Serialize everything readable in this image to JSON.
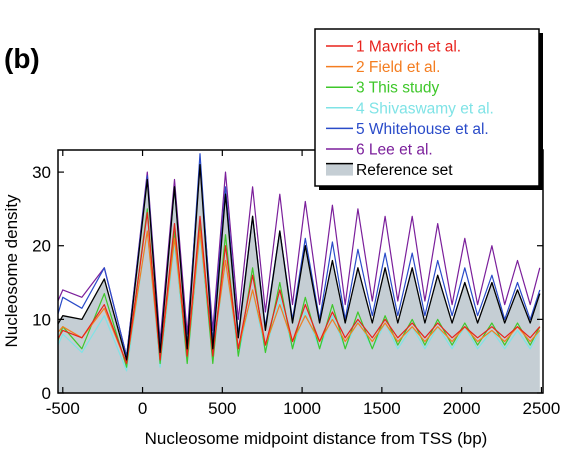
{
  "panel_label": "(b)",
  "chart_data": {
    "type": "line",
    "title": "",
    "xlabel": "Nucleosome midpoint distance from TSS (bp)",
    "ylabel": "Nucleosome density",
    "xlim": [
      -530,
      2510
    ],
    "ylim": [
      0,
      33
    ],
    "xticks": [
      -500,
      0,
      500,
      1000,
      1500,
      2000,
      2500
    ],
    "xtick_labels": [
      "-500",
      "0",
      "500",
      "1000",
      "1500",
      "2000",
      "2500"
    ],
    "yticks": [
      0,
      10,
      20,
      30
    ],
    "ytick_labels": [
      "0",
      "10",
      "20",
      "30"
    ],
    "grid": false,
    "legend_position": "top-right",
    "series": [
      {
        "name": "1 Mavrich et al.",
        "color": "#e8221c",
        "peaks": [
          [
            -500,
            8.5
          ],
          [
            -240,
            12
          ],
          [
            30,
            24.5
          ],
          [
            200,
            23
          ],
          [
            360,
            24
          ],
          [
            520,
            20
          ],
          [
            690,
            16
          ],
          [
            860,
            14
          ],
          [
            1020,
            12
          ],
          [
            1190,
            11
          ],
          [
            1350,
            10
          ],
          [
            1520,
            10
          ],
          [
            1690,
            9.5
          ],
          [
            1850,
            9.5
          ],
          [
            2020,
            9
          ],
          [
            2190,
            9
          ],
          [
            2350,
            9
          ],
          [
            2490,
            9
          ]
        ],
        "troughs": [
          [
            -540,
            7
          ],
          [
            -380,
            7.5
          ],
          [
            -100,
            4
          ],
          [
            110,
            4.5
          ],
          [
            280,
            5
          ],
          [
            440,
            5
          ],
          [
            600,
            6
          ],
          [
            770,
            6.5
          ],
          [
            940,
            7
          ],
          [
            1110,
            7
          ],
          [
            1270,
            7.5
          ],
          [
            1440,
            7.5
          ],
          [
            1600,
            7.5
          ],
          [
            1770,
            7.5
          ],
          [
            1940,
            7.5
          ],
          [
            2100,
            7.5
          ],
          [
            2270,
            7.5
          ],
          [
            2430,
            7.5
          ]
        ]
      },
      {
        "name": "2 Field et al.",
        "color": "#f47d20",
        "peaks": [
          [
            -500,
            9
          ],
          [
            -240,
            11.5
          ],
          [
            30,
            22
          ],
          [
            200,
            21
          ],
          [
            360,
            22
          ],
          [
            520,
            18
          ],
          [
            690,
            14
          ],
          [
            860,
            12
          ],
          [
            1020,
            10.5
          ],
          [
            1190,
            10
          ],
          [
            1350,
            9.5
          ],
          [
            1520,
            9.5
          ],
          [
            1690,
            9
          ],
          [
            1850,
            9
          ],
          [
            2020,
            9
          ],
          [
            2190,
            8.5
          ],
          [
            2350,
            9
          ],
          [
            2490,
            8.5
          ]
        ],
        "troughs": [
          [
            -540,
            8
          ],
          [
            -380,
            7.5
          ],
          [
            -100,
            4
          ],
          [
            110,
            4.5
          ],
          [
            280,
            5
          ],
          [
            440,
            5.5
          ],
          [
            600,
            6
          ],
          [
            770,
            6.5
          ],
          [
            940,
            7
          ],
          [
            1110,
            7
          ],
          [
            1270,
            7
          ],
          [
            1440,
            7
          ],
          [
            1600,
            7
          ],
          [
            1770,
            7
          ],
          [
            1940,
            7
          ],
          [
            2100,
            7
          ],
          [
            2270,
            7
          ],
          [
            2430,
            7
          ]
        ]
      },
      {
        "name": "3 This study",
        "color": "#3ec72a",
        "peaks": [
          [
            -500,
            9
          ],
          [
            -240,
            13.5
          ],
          [
            30,
            25
          ],
          [
            200,
            22
          ],
          [
            360,
            23
          ],
          [
            520,
            21.5
          ],
          [
            690,
            17
          ],
          [
            860,
            15
          ],
          [
            1020,
            13
          ],
          [
            1190,
            12
          ],
          [
            1350,
            11
          ],
          [
            1520,
            10.5
          ],
          [
            1690,
            10
          ],
          [
            1850,
            10
          ],
          [
            2020,
            9.5
          ],
          [
            2190,
            9.5
          ],
          [
            2350,
            9.5
          ],
          [
            2490,
            9
          ]
        ],
        "troughs": [
          [
            -540,
            6.5
          ],
          [
            -380,
            6
          ],
          [
            -100,
            3.5
          ],
          [
            110,
            4
          ],
          [
            280,
            4
          ],
          [
            440,
            4
          ],
          [
            600,
            5
          ],
          [
            770,
            5.5
          ],
          [
            940,
            6
          ],
          [
            1110,
            6
          ],
          [
            1270,
            6
          ],
          [
            1440,
            6
          ],
          [
            1600,
            6.5
          ],
          [
            1770,
            6.5
          ],
          [
            1940,
            6.5
          ],
          [
            2100,
            6.5
          ],
          [
            2270,
            6.5
          ],
          [
            2430,
            6.5
          ]
        ]
      },
      {
        "name": "4 Shivaswamy et al.",
        "color": "#7fe3e6",
        "peaks": [
          [
            -500,
            8
          ],
          [
            -240,
            10.5
          ],
          [
            30,
            22
          ],
          [
            200,
            20
          ],
          [
            360,
            21
          ],
          [
            520,
            18
          ],
          [
            690,
            14
          ],
          [
            860,
            13
          ],
          [
            1020,
            11
          ],
          [
            1190,
            10.5
          ],
          [
            1350,
            10
          ],
          [
            1520,
            9.5
          ],
          [
            1690,
            9
          ],
          [
            1850,
            9
          ],
          [
            2020,
            9
          ],
          [
            2190,
            8.5
          ],
          [
            2350,
            8.5
          ],
          [
            2490,
            8.5
          ]
        ],
        "troughs": [
          [
            -540,
            6
          ],
          [
            -380,
            5.5
          ],
          [
            -100,
            3
          ],
          [
            110,
            3.5
          ],
          [
            280,
            4
          ],
          [
            440,
            4.5
          ],
          [
            600,
            5
          ],
          [
            770,
            5.5
          ],
          [
            940,
            6
          ],
          [
            1110,
            6
          ],
          [
            1270,
            6
          ],
          [
            1440,
            6
          ],
          [
            1600,
            6
          ],
          [
            1770,
            6
          ],
          [
            1940,
            6
          ],
          [
            2100,
            6
          ],
          [
            2270,
            6
          ],
          [
            2430,
            6
          ]
        ]
      },
      {
        "name": "5 Whitehouse et al.",
        "color": "#2a4bc9",
        "peaks": [
          [
            -500,
            13
          ],
          [
            -240,
            17
          ],
          [
            30,
            29.5
          ],
          [
            200,
            28
          ],
          [
            360,
            32.5
          ],
          [
            520,
            28
          ],
          [
            690,
            24
          ],
          [
            860,
            22
          ],
          [
            1020,
            21
          ],
          [
            1190,
            20.5
          ],
          [
            1350,
            19.5
          ],
          [
            1520,
            19
          ],
          [
            1690,
            19
          ],
          [
            1850,
            18
          ],
          [
            2020,
            17
          ],
          [
            2190,
            16
          ],
          [
            2350,
            15
          ],
          [
            2490,
            14
          ]
        ],
        "troughs": [
          [
            -540,
            10
          ],
          [
            -380,
            11.5
          ],
          [
            -100,
            5
          ],
          [
            110,
            6
          ],
          [
            280,
            6.5
          ],
          [
            440,
            7
          ],
          [
            600,
            8
          ],
          [
            770,
            9
          ],
          [
            940,
            10
          ],
          [
            1110,
            10
          ],
          [
            1270,
            10
          ],
          [
            1440,
            10.5
          ],
          [
            1600,
            10.5
          ],
          [
            1770,
            10.5
          ],
          [
            1940,
            10.5
          ],
          [
            2100,
            10.5
          ],
          [
            2270,
            10
          ],
          [
            2430,
            10
          ]
        ]
      },
      {
        "name": "6 Lee et al.",
        "color": "#7b1f9b",
        "peaks": [
          [
            -500,
            14
          ],
          [
            -240,
            17
          ],
          [
            30,
            30
          ],
          [
            200,
            29
          ],
          [
            360,
            31
          ],
          [
            520,
            30
          ],
          [
            690,
            28
          ],
          [
            860,
            27
          ],
          [
            1020,
            26
          ],
          [
            1190,
            25.5
          ],
          [
            1350,
            25
          ],
          [
            1520,
            24
          ],
          [
            1690,
            24
          ],
          [
            1850,
            23
          ],
          [
            2020,
            21
          ],
          [
            2190,
            20
          ],
          [
            2350,
            18
          ],
          [
            2490,
            17
          ]
        ],
        "troughs": [
          [
            -540,
            12
          ],
          [
            -380,
            13
          ],
          [
            -100,
            5
          ],
          [
            110,
            7
          ],
          [
            280,
            8
          ],
          [
            440,
            8.5
          ],
          [
            600,
            10
          ],
          [
            770,
            11
          ],
          [
            940,
            12
          ],
          [
            1110,
            12
          ],
          [
            1270,
            12
          ],
          [
            1440,
            12.5
          ],
          [
            1600,
            12.5
          ],
          [
            1770,
            12.5
          ],
          [
            1940,
            12
          ],
          [
            2100,
            12
          ],
          [
            2270,
            12
          ],
          [
            2430,
            12
          ]
        ]
      },
      {
        "name": "Reference set",
        "color": "#000000",
        "fill": "#c5ced4",
        "peaks": [
          [
            -500,
            10.5
          ],
          [
            -240,
            15.5
          ],
          [
            30,
            29
          ],
          [
            200,
            28
          ],
          [
            360,
            31
          ],
          [
            520,
            27
          ],
          [
            690,
            24
          ],
          [
            860,
            22
          ],
          [
            1020,
            20
          ],
          [
            1190,
            18
          ],
          [
            1350,
            17
          ],
          [
            1520,
            17
          ],
          [
            1690,
            17
          ],
          [
            1850,
            16
          ],
          [
            2020,
            15
          ],
          [
            2190,
            15
          ],
          [
            2350,
            14
          ],
          [
            2490,
            13.5
          ]
        ],
        "troughs": [
          [
            -540,
            9
          ],
          [
            -380,
            10
          ],
          [
            -100,
            4.5
          ],
          [
            110,
            5.5
          ],
          [
            280,
            6
          ],
          [
            440,
            6
          ],
          [
            600,
            7.5
          ],
          [
            770,
            8.5
          ],
          [
            940,
            9.5
          ],
          [
            1110,
            9.5
          ],
          [
            1270,
            9.5
          ],
          [
            1440,
            9.5
          ],
          [
            1600,
            9.5
          ],
          [
            1770,
            9.5
          ],
          [
            1940,
            9.5
          ],
          [
            2100,
            9.5
          ],
          [
            2270,
            9.5
          ],
          [
            2430,
            9.5
          ]
        ]
      }
    ]
  }
}
